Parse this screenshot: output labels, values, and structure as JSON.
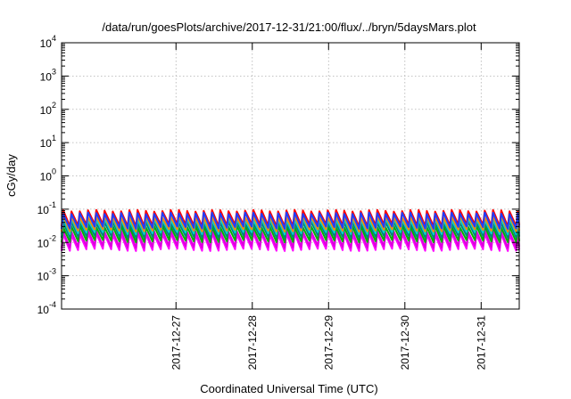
{
  "chart_data": {
    "type": "line",
    "title": "/data/run/goesPlots/archive/2017-12-31/21:00/flux/../bryn/5daysMars.plot",
    "xlabel": "Coordinated Universal Time (UTC)",
    "ylabel": "cGy/day",
    "yscale": "log",
    "ylim": [
      0.0001,
      10000
    ],
    "yticks": [
      {
        "base": "10",
        "exp": "-4"
      },
      {
        "base": "10",
        "exp": "-3"
      },
      {
        "base": "10",
        "exp": "-2"
      },
      {
        "base": "10",
        "exp": "-1"
      },
      {
        "base": "10",
        "exp": "0"
      },
      {
        "base": "10",
        "exp": "1"
      },
      {
        "base": "10",
        "exp": "2"
      },
      {
        "base": "10",
        "exp": "3"
      },
      {
        "base": "10",
        "exp": "4"
      }
    ],
    "xlim": [
      "2017-12-26T00:00",
      "2017-12-31T23:59"
    ],
    "xticks": [
      "2017-12-27",
      "2017-12-28",
      "2017-12-29",
      "2017-12-30",
      "2017-12-31"
    ],
    "grid": true,
    "legend": "none",
    "sawtooth_period_hours": 2.6,
    "series": [
      {
        "color": "#ff00ff",
        "peak": 0.018,
        "trough": 0.006
      },
      {
        "color": "#dd00dd",
        "peak": 0.022,
        "trough": 0.0075
      },
      {
        "color": "#00b000",
        "peak": 0.03,
        "trough": 0.011
      },
      {
        "color": "#008080",
        "peak": 0.04,
        "trough": 0.015
      },
      {
        "color": "#00d0d0",
        "peak": 0.05,
        "trough": 0.019
      },
      {
        "color": "#ff8c00",
        "peak": 0.06,
        "trough": 0.023
      },
      {
        "color": "#ff0000",
        "peak": 0.09,
        "trough": 0.033
      },
      {
        "color": "#1f3fff",
        "peak": 0.075,
        "trough": 0.028
      }
    ]
  }
}
